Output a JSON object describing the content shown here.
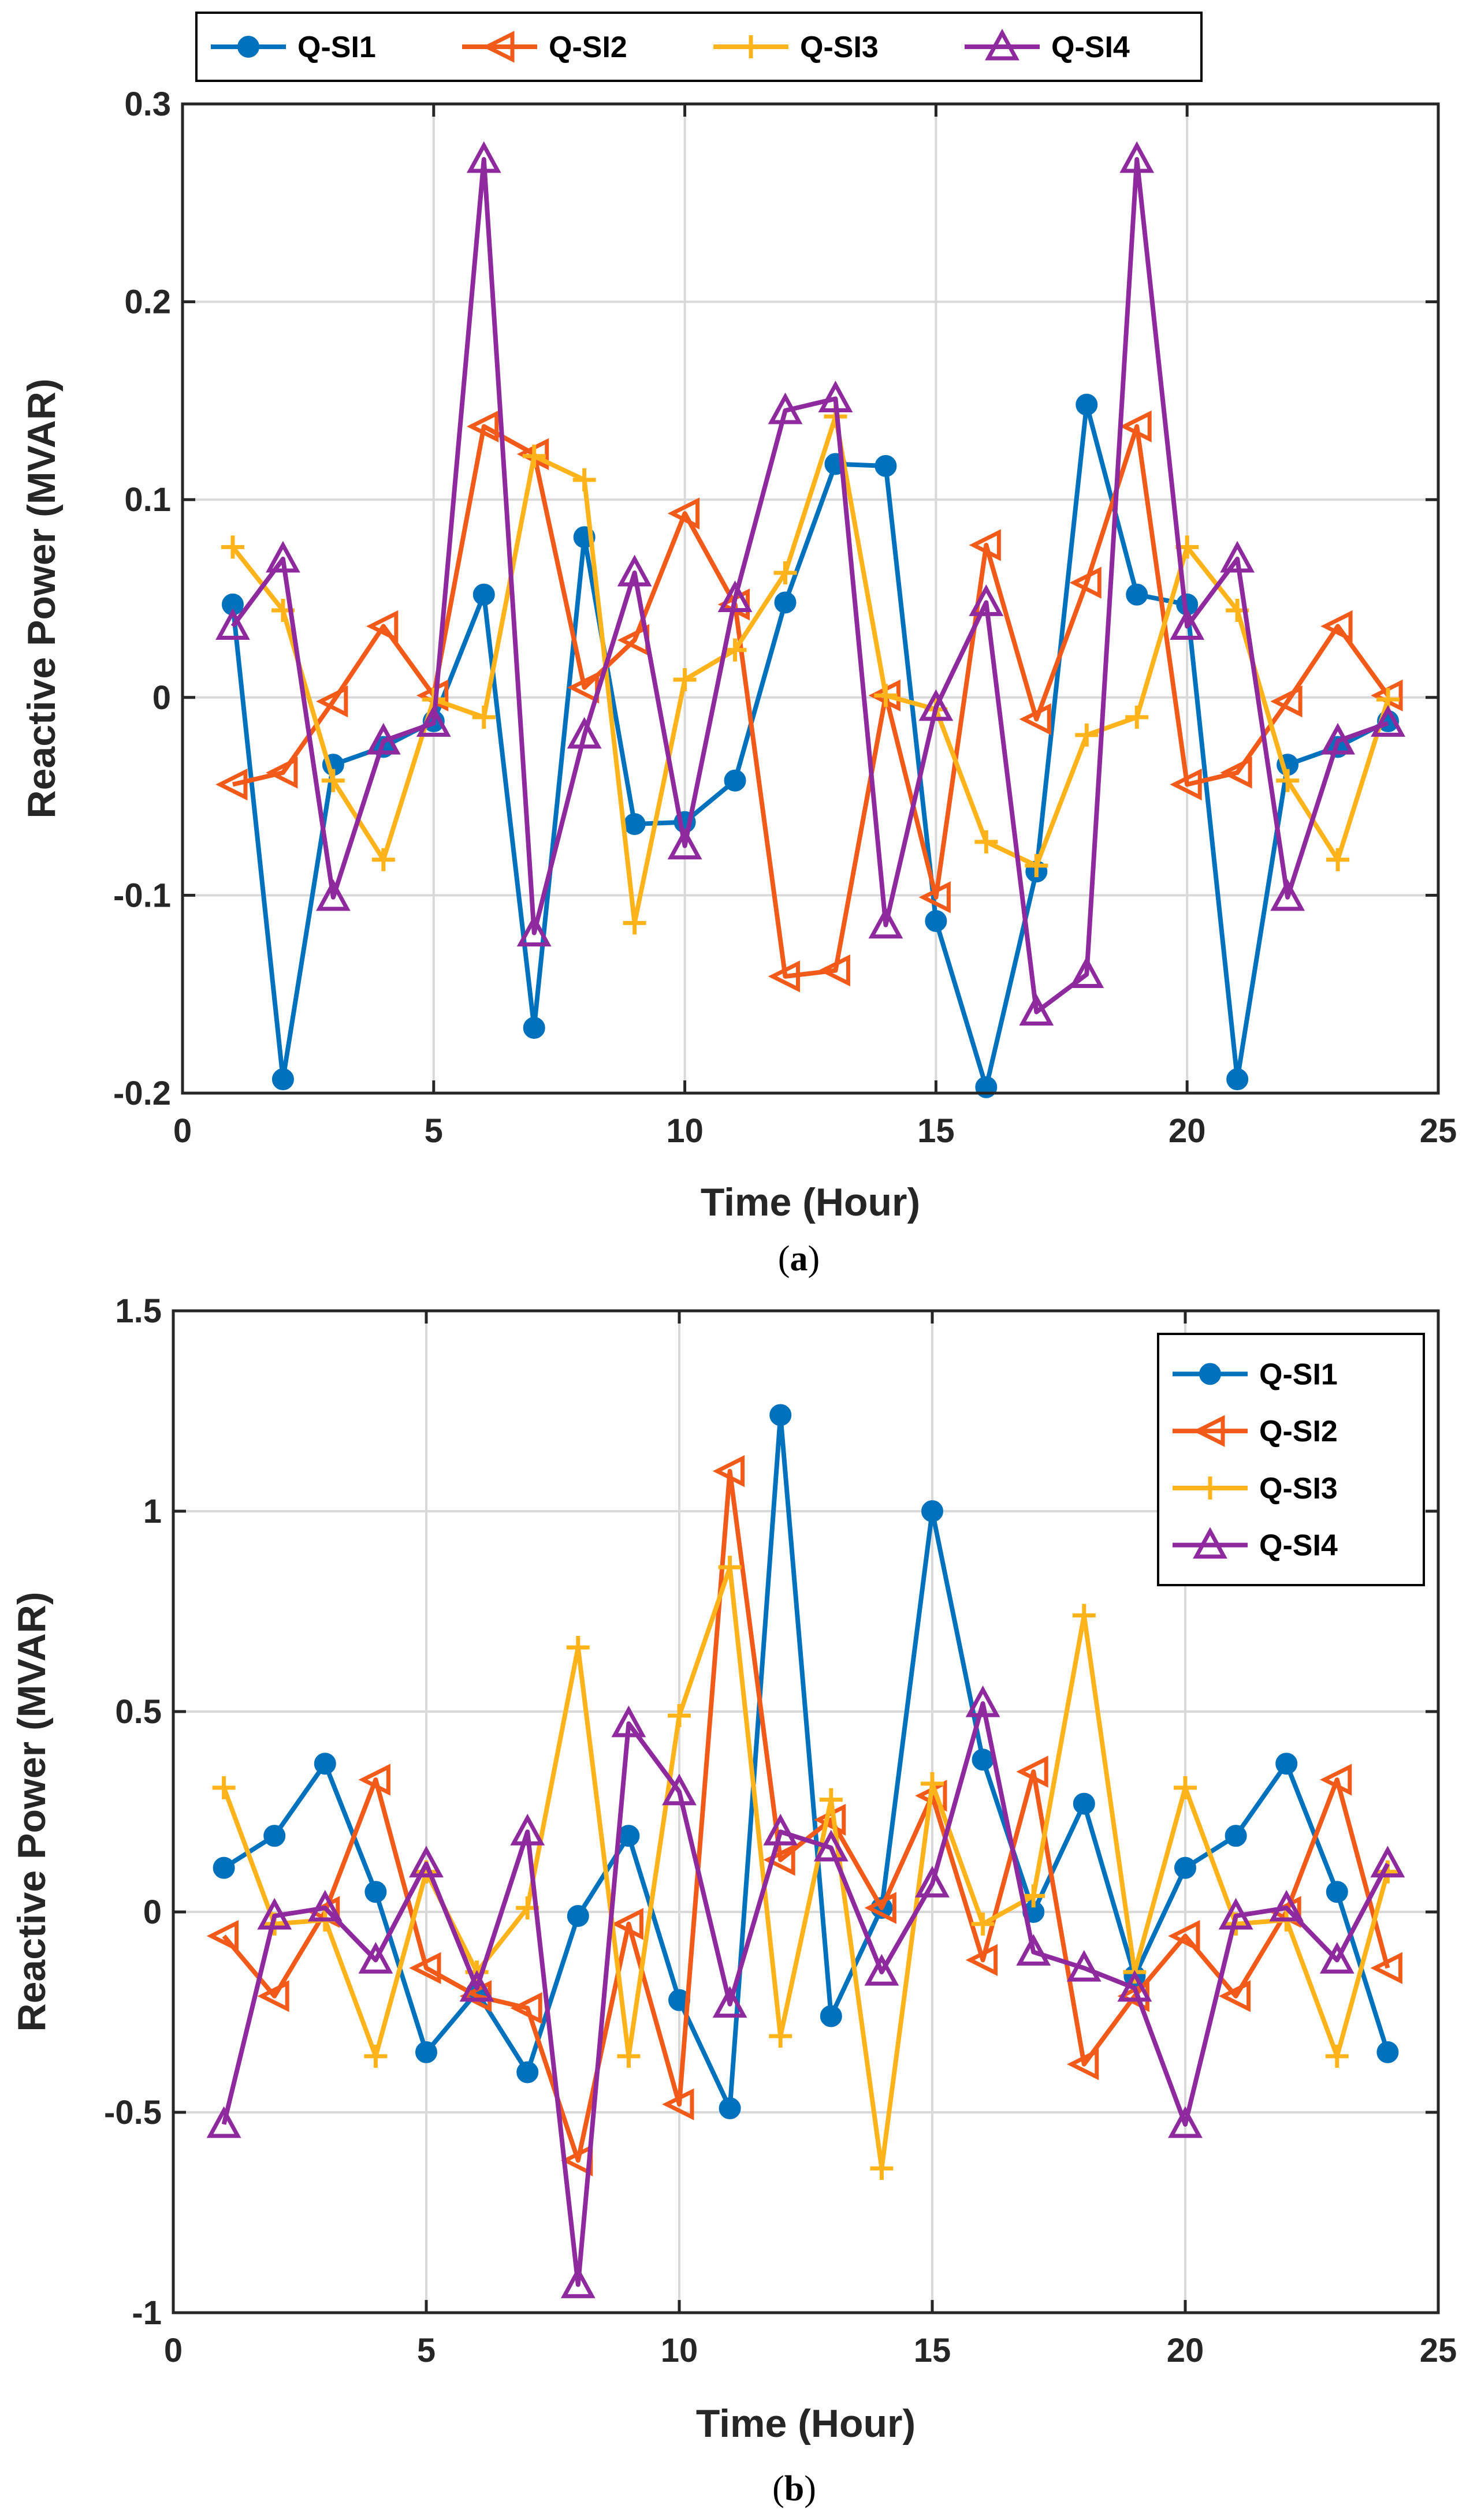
{
  "colors": {
    "Q-SI1": "#0072BD",
    "Q-SI2": "#F25A1A",
    "Q-SI3": "#FFB31A",
    "Q-SI4": "#8E2A9E",
    "grid": "#d9d9d9",
    "axis": "#262626"
  },
  "chart_data": [
    {
      "id": "a",
      "type": "line",
      "caption": "a",
      "title": "",
      "xlabel": "Time (Hour)",
      "ylabel": "Reactive Power (MVAR)",
      "xlim": [
        0,
        25
      ],
      "ylim": [
        -0.2,
        0.3
      ],
      "xticks": [
        0,
        5,
        10,
        15,
        20,
        25
      ],
      "yticks": [
        -0.2,
        -0.1,
        0,
        0.1,
        0.2,
        0.3
      ],
      "ytick_labels": [
        "-0.2",
        "-0.1",
        "0",
        "0.1",
        "0.2",
        "0.3"
      ],
      "grid": true,
      "legend_position": "top-outside-horizontal",
      "x": [
        1,
        2,
        3,
        4,
        5,
        6,
        7,
        8,
        9,
        10,
        11,
        12,
        13,
        14,
        15,
        16,
        17,
        18,
        19,
        20,
        21,
        22,
        23,
        24
      ],
      "series": [
        {
          "name": "Q-SI1",
          "marker": "circle",
          "values": [
            0.047,
            -0.193,
            -0.034,
            -0.025,
            -0.012,
            0.052,
            -0.167,
            0.081,
            -0.064,
            -0.063,
            -0.042,
            0.048,
            0.118,
            0.117,
            -0.113,
            -0.197,
            -0.088,
            0.148,
            0.052,
            0.047,
            -0.193,
            -0.034,
            -0.025,
            -0.012
          ]
        },
        {
          "name": "Q-SI2",
          "marker": "triangle-left",
          "values": [
            -0.044,
            -0.038,
            -0.002,
            0.036,
            0.001,
            0.137,
            0.123,
            0.005,
            0.029,
            0.093,
            0.047,
            -0.141,
            -0.138,
            0.001,
            -0.101,
            0.077,
            -0.011,
            0.058,
            0.137,
            -0.044,
            -0.038,
            -0.002,
            0.036,
            0.001
          ]
        },
        {
          "name": "Q-SI3",
          "marker": "plus",
          "values": [
            0.076,
            0.044,
            -0.042,
            -0.082,
            -0.001,
            -0.01,
            0.122,
            0.11,
            -0.114,
            0.009,
            0.024,
            0.063,
            0.142,
            0.001,
            -0.006,
            -0.073,
            -0.085,
            -0.019,
            -0.01,
            0.076,
            0.044,
            -0.042,
            -0.082,
            -0.001
          ]
        },
        {
          "name": "Q-SI4",
          "marker": "triangle-up",
          "values": [
            0.036,
            0.07,
            -0.101,
            -0.022,
            -0.013,
            0.272,
            -0.119,
            -0.019,
            0.063,
            -0.075,
            0.05,
            0.145,
            0.151,
            -0.115,
            -0.005,
            0.048,
            -0.159,
            -0.14,
            0.272,
            0.036,
            0.07,
            -0.101,
            -0.022,
            -0.013
          ]
        }
      ]
    },
    {
      "id": "b",
      "type": "line",
      "caption": "b",
      "title": "",
      "xlabel": "Time (Hour)",
      "ylabel": "Reactive Power (MVAR)",
      "xlim": [
        0,
        25
      ],
      "ylim": [
        -1,
        1.5
      ],
      "xticks": [
        0,
        5,
        10,
        15,
        20,
        25
      ],
      "yticks": [
        -1,
        -0.5,
        0,
        0.5,
        1,
        1.5
      ],
      "ytick_labels": [
        "-1",
        "-0.5",
        "0",
        "0.5",
        "1",
        "1.5"
      ],
      "grid": true,
      "legend_position": "top-right",
      "x": [
        1,
        2,
        3,
        4,
        5,
        6,
        7,
        8,
        9,
        10,
        11,
        12,
        13,
        14,
        15,
        16,
        17,
        18,
        19,
        20,
        21,
        22,
        23,
        24
      ],
      "series": [
        {
          "name": "Q-SI1",
          "marker": "circle",
          "values": [
            0.11,
            0.19,
            0.37,
            0.05,
            -0.35,
            -0.2,
            -0.4,
            -0.01,
            0.19,
            -0.22,
            -0.49,
            1.24,
            -0.26,
            0.01,
            1.0,
            0.38,
            0.0,
            0.27,
            -0.16,
            0.11,
            0.19,
            0.37,
            0.05,
            -0.35
          ]
        },
        {
          "name": "Q-SI2",
          "marker": "triangle-left",
          "values": [
            -0.06,
            -0.21,
            0.0,
            0.33,
            -0.14,
            -0.21,
            -0.24,
            -0.62,
            -0.03,
            -0.48,
            1.1,
            0.13,
            0.23,
            0.01,
            0.29,
            -0.12,
            0.35,
            -0.38,
            -0.21,
            -0.06,
            -0.21,
            0.0,
            0.33,
            -0.14
          ]
        },
        {
          "name": "Q-SI3",
          "marker": "plus",
          "values": [
            0.31,
            -0.03,
            -0.02,
            -0.36,
            0.1,
            -0.15,
            0.01,
            0.66,
            -0.36,
            0.49,
            0.86,
            -0.31,
            0.28,
            -0.64,
            0.32,
            -0.03,
            0.04,
            0.74,
            -0.15,
            0.31,
            -0.03,
            -0.02,
            -0.36,
            0.1
          ]
        },
        {
          "name": "Q-SI4",
          "marker": "triangle-up",
          "values": [
            -0.53,
            -0.01,
            0.01,
            -0.12,
            0.12,
            -0.19,
            0.2,
            -0.93,
            0.47,
            0.3,
            -0.23,
            0.2,
            0.16,
            -0.15,
            0.07,
            0.52,
            -0.1,
            -0.14,
            -0.19,
            -0.53,
            -0.01,
            0.01,
            -0.12,
            0.12
          ]
        }
      ]
    }
  ]
}
